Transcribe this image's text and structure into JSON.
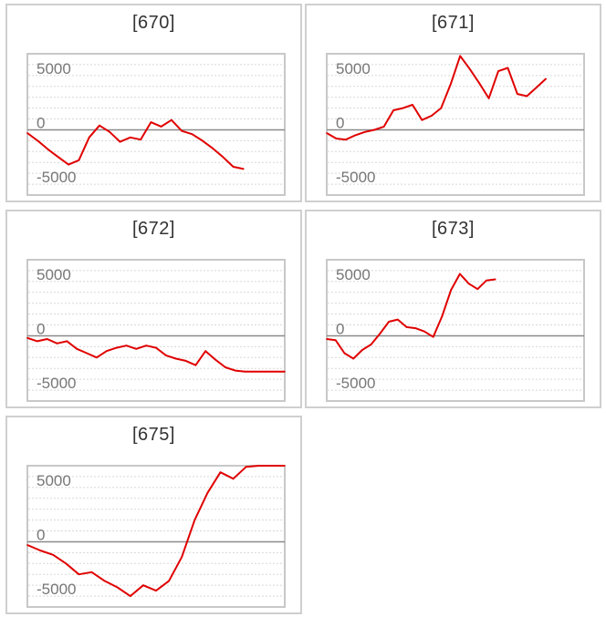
{
  "chart_data": [
    {
      "type": "line",
      "title": "[670]",
      "ylim": [
        -6000,
        7000
      ],
      "y_ticks": [
        "5000",
        "0",
        "-5000"
      ],
      "y_tick_values": [
        5000,
        0,
        -5000
      ],
      "grid": "horizontal-dotted",
      "series": [
        {
          "color": "#e00000",
          "x": [
            0,
            1,
            2,
            3,
            4,
            5,
            6,
            7,
            8,
            9,
            10,
            11,
            12,
            13,
            14,
            15,
            16,
            17,
            18,
            19,
            20,
            21
          ],
          "y": [
            -300,
            -1000,
            -1800,
            -2500,
            -3200,
            -2800,
            -700,
            400,
            -200,
            -1100,
            -700,
            -900,
            700,
            300,
            900,
            -100,
            -400,
            -1000,
            -1700,
            -2500,
            -3400,
            -3600
          ]
        }
      ]
    },
    {
      "type": "line",
      "title": "[671]",
      "ylim": [
        -6000,
        7000
      ],
      "y_ticks": [
        "5000",
        "0",
        "-5000"
      ],
      "y_tick_values": [
        5000,
        0,
        -5000
      ],
      "grid": "horizontal-dotted",
      "series": [
        {
          "color": "#e00000",
          "x": [
            0,
            1,
            2,
            3,
            4,
            5,
            6,
            7,
            8,
            9,
            10,
            11,
            12,
            13,
            14,
            15,
            16,
            17,
            18,
            19,
            20,
            21,
            22,
            23
          ],
          "y": [
            -300,
            -800,
            -900,
            -500,
            -200,
            0,
            300,
            1800,
            2000,
            2300,
            900,
            1300,
            2000,
            4200,
            6800,
            5600,
            4300,
            2900,
            5400,
            5700,
            3300,
            3100,
            3900,
            4700
          ]
        }
      ]
    },
    {
      "type": "line",
      "title": "[672]",
      "ylim": [
        -6000,
        7000
      ],
      "y_ticks": [
        "5000",
        "0",
        "-5000"
      ],
      "y_tick_values": [
        5000,
        0,
        -5000
      ],
      "grid": "horizontal-dotted",
      "series": [
        {
          "color": "#e00000",
          "x": [
            0,
            1,
            2,
            3,
            4,
            5,
            6,
            7,
            8,
            9,
            10,
            11,
            12,
            13,
            14,
            15,
            16,
            17,
            18,
            19,
            20,
            21,
            22,
            23,
            24,
            25,
            26
          ],
          "y": [
            -200,
            -500,
            -300,
            -700,
            -500,
            -1200,
            -1600,
            -2000,
            -1400,
            -1100,
            -900,
            -1200,
            -900,
            -1100,
            -1800,
            -2100,
            -2300,
            -2700,
            -1400,
            -2200,
            -2900,
            -3200,
            -3300,
            -3300,
            -3300,
            -3300,
            -3300
          ]
        }
      ]
    },
    {
      "type": "line",
      "title": "[673]",
      "ylim": [
        -6000,
        7000
      ],
      "y_ticks": [
        "5000",
        "0",
        "-5000"
      ],
      "y_tick_values": [
        5000,
        0,
        -5000
      ],
      "grid": "horizontal-dotted",
      "series": [
        {
          "color": "#e00000",
          "x": [
            0,
            1,
            2,
            3,
            4,
            5,
            6,
            7,
            8,
            9,
            10,
            11,
            12,
            13,
            14,
            15,
            16,
            17,
            18,
            19
          ],
          "y": [
            -300,
            -400,
            -1600,
            -2100,
            -1300,
            -800,
            200,
            1300,
            1500,
            800,
            700,
            400,
            -100,
            1800,
            4200,
            5700,
            4800,
            4300,
            5100,
            5200
          ]
        }
      ]
    },
    {
      "type": "line",
      "title": "[675]",
      "ylim": [
        -6000,
        7000
      ],
      "y_ticks": [
        "5000",
        "0",
        "-5000"
      ],
      "y_tick_values": [
        5000,
        0,
        -5000
      ],
      "grid": "horizontal-dotted",
      "series": [
        {
          "color": "#e00000",
          "x": [
            0,
            1,
            2,
            3,
            4,
            5,
            6,
            7,
            8,
            9,
            10,
            11,
            12,
            13,
            14,
            15,
            16,
            17,
            18,
            19,
            20
          ],
          "y": [
            -300,
            -800,
            -1200,
            -2000,
            -3000,
            -2800,
            -3600,
            -4200,
            -5000,
            -4000,
            -4500,
            -3600,
            -1400,
            2000,
            4500,
            6400,
            5800,
            6900,
            7000,
            7000,
            7000
          ]
        }
      ]
    }
  ]
}
